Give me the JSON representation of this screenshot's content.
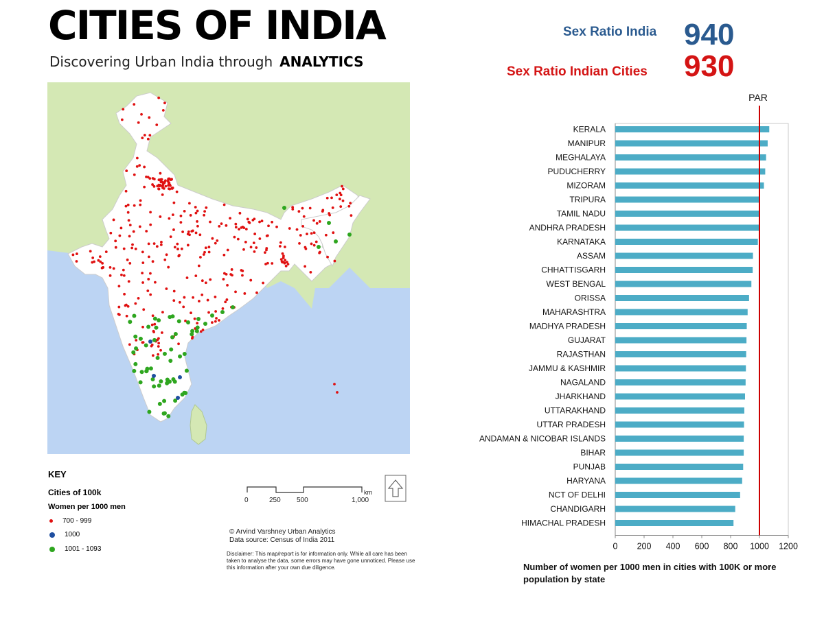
{
  "header": {
    "title": "CITIES OF INDIA",
    "subtitle": "Discovering Urban India through",
    "subtitle_emphasis": "ANALYTICS"
  },
  "stats": {
    "india_label": "Sex Ratio India",
    "india_value": "940",
    "cities_label": "Sex Ratio Indian Cities",
    "cities_value": "930",
    "india_color": "#2a5a8f",
    "cities_color": "#d41414"
  },
  "map": {
    "colors": {
      "land": "#d4e8b4",
      "sea": "#bcd4f3",
      "india": "#ffffff",
      "red": "#e01010",
      "blue": "#1f4fa0",
      "green": "#2ea61f"
    },
    "key_title": "KEY",
    "key_subtitle": "Cities of 100k",
    "key_subtitle2": "Women per 1000 men",
    "legend": [
      {
        "label": "700 - 999",
        "color": "#e01010"
      },
      {
        "label": "1000",
        "color": "#1f4fa0"
      },
      {
        "label": "1001 - 1093",
        "color": "#2ea61f"
      }
    ],
    "scale_labels": [
      "0",
      "250",
      "500",
      "1,000"
    ],
    "scale_unit": "km",
    "credit_line1": "© Arvind Varshney Urban Analytics",
    "credit_line2": "Data source: Census of India 2011",
    "disclaimer": "Disclaimer: This map/report is for information only. While all care has been taken to analyse the data, some errors may have gone unnoticed. Please use this information after your own due diligence."
  },
  "chart_data": {
    "type": "bar",
    "orientation": "horizontal",
    "title": "Number of women per 1000 men in cities with 100K or more population by state",
    "categories": [
      "KERALA",
      "MANIPUR",
      "MEGHALAYA",
      "PUDUCHERRY",
      "MIZORAM",
      "TRIPURA",
      "TAMIL NADU",
      "ANDHRA PRADESH",
      "KARNATAKA",
      "ASSAM",
      "CHHATTISGARH",
      "WEST BENGAL",
      "ORISSA",
      "MAHARASHTRA",
      "MADHYA PRADESH",
      "GUJARAT",
      "RAJASTHAN",
      "JAMMU & KASHMIR",
      "NAGALAND",
      "JHARKHAND",
      "UTTARAKHAND",
      "UTTAR PRADESH",
      "ANDAMAN & NICOBAR ISLANDS",
      "BIHAR",
      "PUNJAB",
      "HARYANA",
      "NCT OF DELHI",
      "CHANDIGARH",
      "HIMACHAL PRADESH"
    ],
    "values": [
      1068,
      1057,
      1046,
      1040,
      1031,
      1001,
      1000,
      998,
      989,
      955,
      953,
      944,
      928,
      918,
      912,
      910,
      908,
      906,
      904,
      900,
      895,
      893,
      891,
      891,
      887,
      880,
      866,
      832,
      820
    ],
    "xlim": [
      0,
      1200
    ],
    "xticks": [
      "0",
      "200",
      "400",
      "600",
      "800",
      "1000",
      "1200"
    ],
    "reference_line": {
      "label": "PAR",
      "value": 1000,
      "color": "#cc0000"
    },
    "bar_color": "#4cacc6",
    "xlabel": "Number of women per 1000 men in cities with 100K or more population by state"
  }
}
